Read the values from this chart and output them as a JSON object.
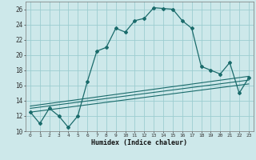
{
  "xlabel": "Humidex (Indice chaleur)",
  "background_color": "#cde8ea",
  "grid_color": "#9ccdd0",
  "line_color": "#1a6b6b",
  "xlim": [
    -0.5,
    23.5
  ],
  "ylim": [
    10,
    27
  ],
  "xticks": [
    0,
    1,
    2,
    3,
    4,
    5,
    6,
    7,
    8,
    9,
    10,
    11,
    12,
    13,
    14,
    15,
    16,
    17,
    18,
    19,
    20,
    21,
    22,
    23
  ],
  "yticks": [
    10,
    12,
    14,
    16,
    18,
    20,
    22,
    24,
    26
  ],
  "main_x": [
    0,
    1,
    2,
    3,
    4,
    5,
    6,
    7,
    8,
    9,
    10,
    11,
    12,
    13,
    14,
    15,
    16,
    17,
    18,
    19,
    20,
    21,
    22,
    23
  ],
  "main_y": [
    12.5,
    11,
    13,
    12,
    10.5,
    12,
    16.5,
    20.5,
    21,
    23.5,
    23,
    24.5,
    24.8,
    26.2,
    26.1,
    26.0,
    24.5,
    23.5,
    18.5,
    18.0,
    17.5,
    19.0,
    15.0,
    17.0
  ],
  "line2_x": [
    0,
    23
  ],
  "line2_y": [
    13.3,
    17.2
  ],
  "line3_x": [
    0,
    23
  ],
  "line3_y": [
    13.0,
    16.7
  ],
  "line4_x": [
    0,
    23
  ],
  "line4_y": [
    12.5,
    16.2
  ]
}
